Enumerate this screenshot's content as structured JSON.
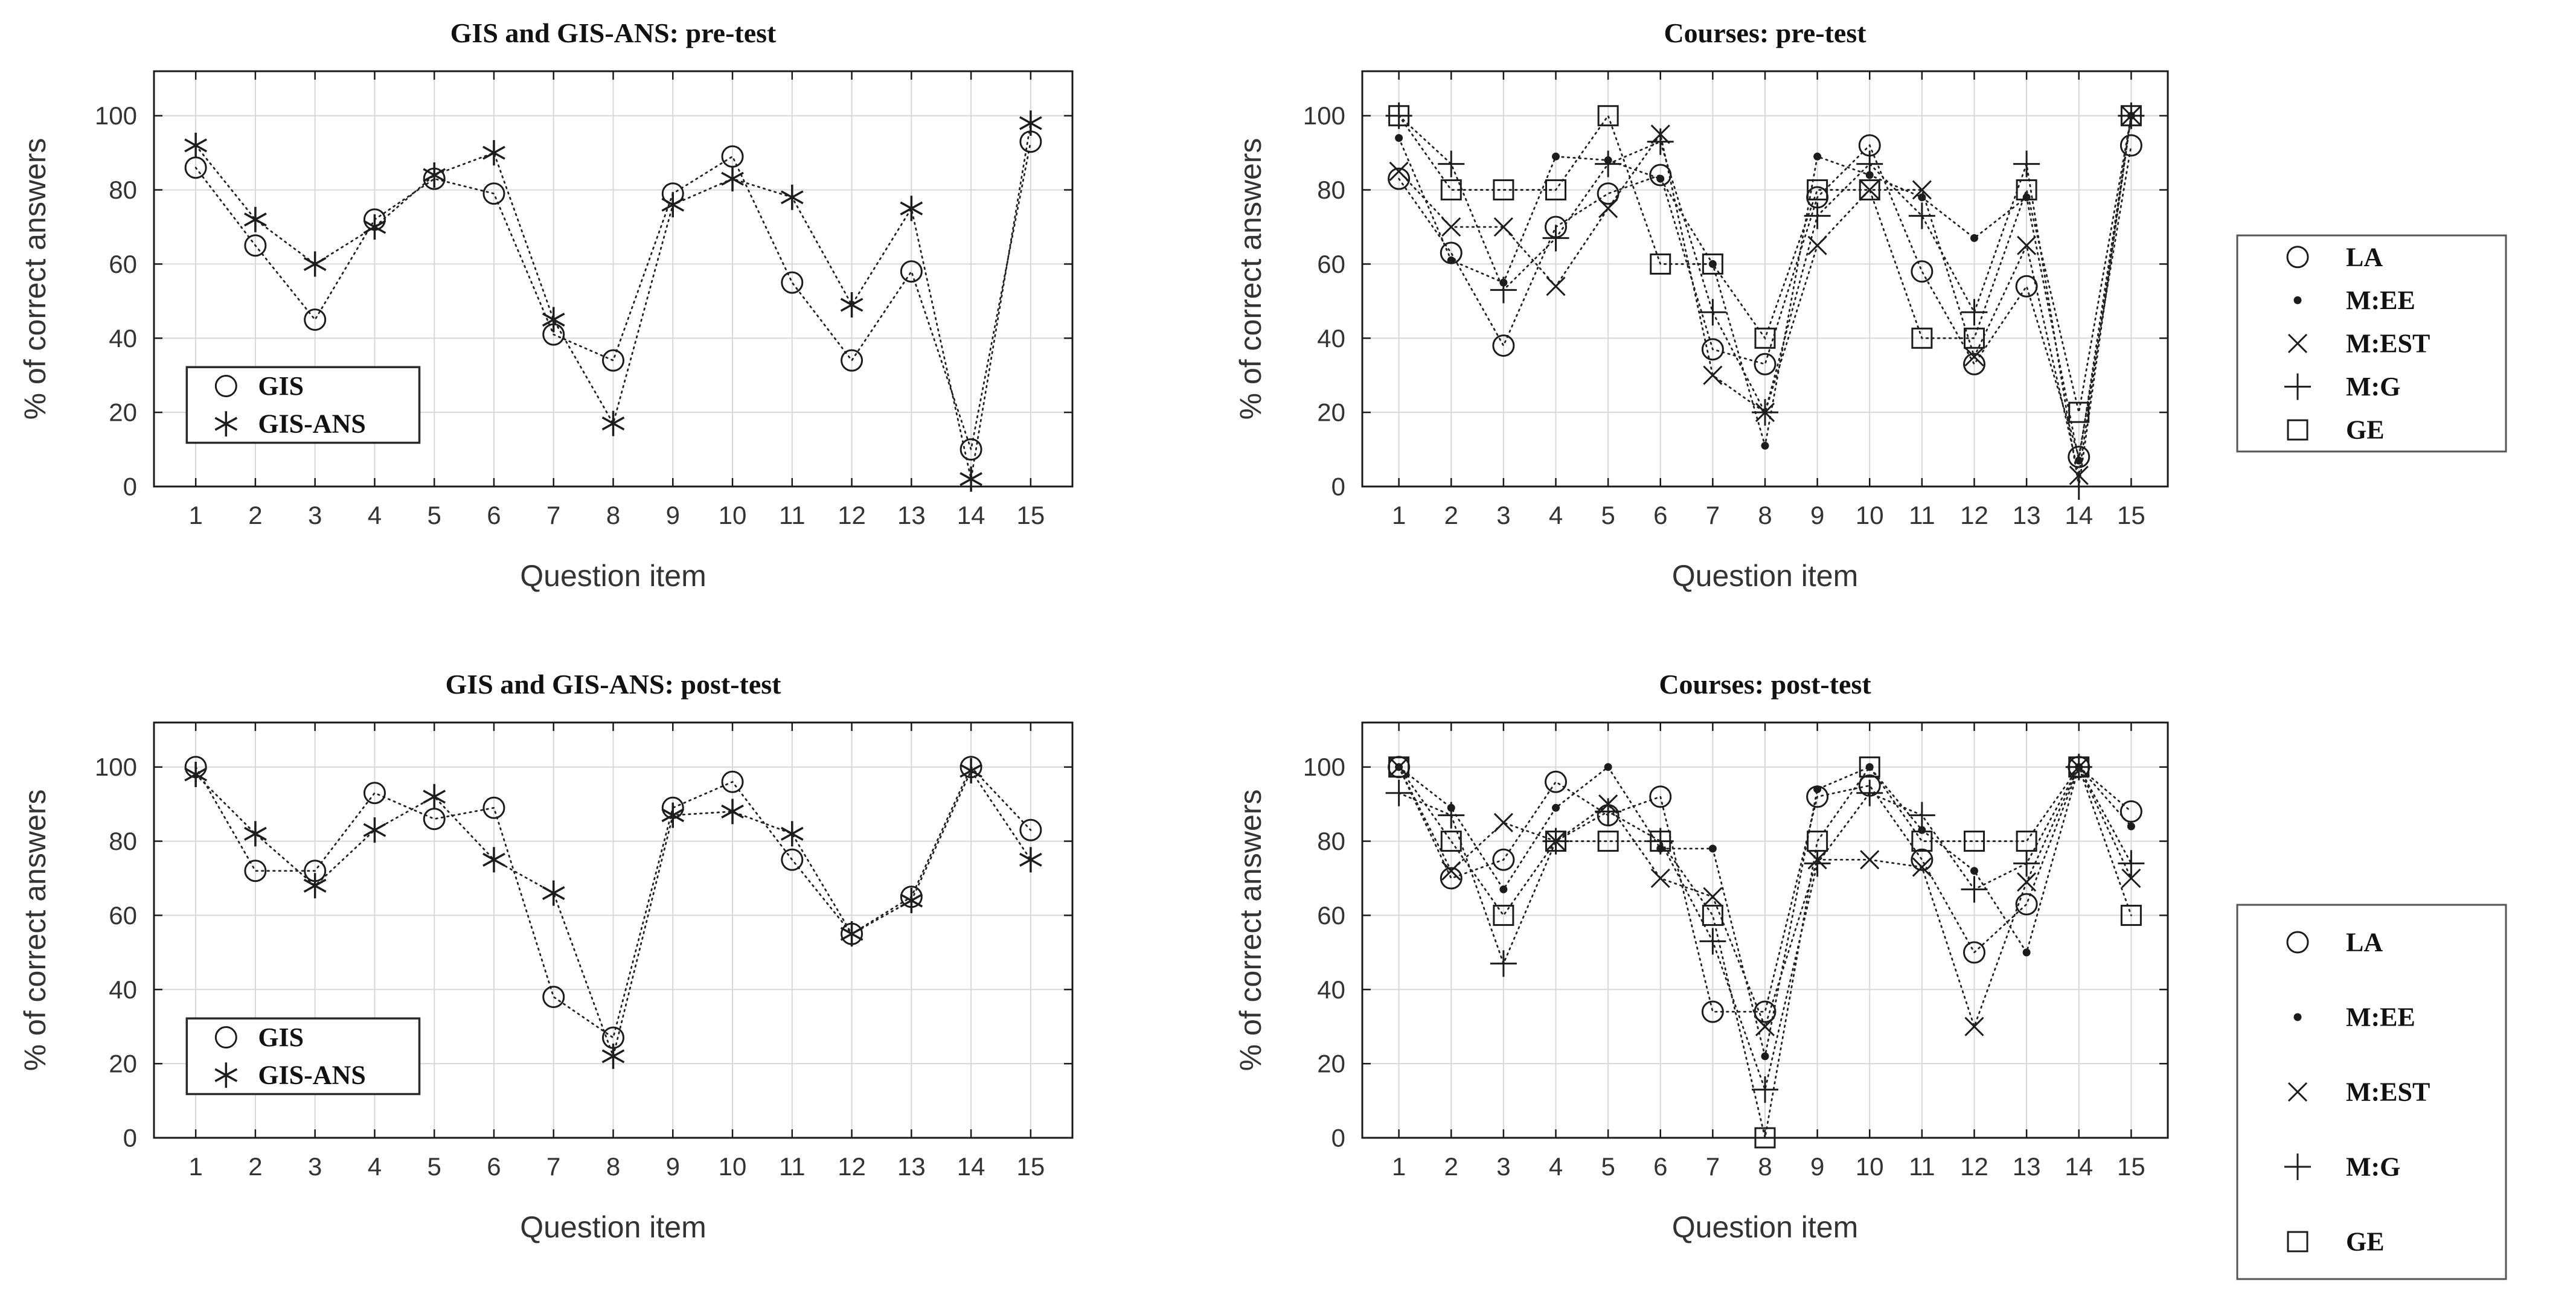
{
  "figure": {
    "background": "#ffffff",
    "colors": {
      "line": "#222222",
      "marker": "#1c1c1c",
      "grid": "#d8d8d8",
      "spine": "#1a1a1a",
      "tick_label": "#333333",
      "title_text": "#111111",
      "legend_border": "#555555"
    }
  },
  "chart_data": [
    {
      "id": "gis-pretest",
      "type": "line",
      "title": "GIS and GIS-ANS: pre-test",
      "xlabel": "Question item",
      "ylabel": "% of correct answers",
      "x": [
        1,
        2,
        3,
        4,
        5,
        6,
        7,
        8,
        9,
        10,
        11,
        12,
        13,
        14,
        15
      ],
      "xlim": [
        0.3,
        15.7
      ],
      "ylim": [
        0,
        112
      ],
      "yticks": [
        0,
        20,
        40,
        60,
        80,
        100
      ],
      "grid": true,
      "legend_position": "inside-bottom-left",
      "series": [
        {
          "name": "GIS",
          "marker": "circle",
          "values": [
            86,
            65,
            45,
            72,
            83,
            79,
            41,
            34,
            79,
            89,
            55,
            34,
            58,
            10,
            93
          ]
        },
        {
          "name": "GIS-ANS",
          "marker": "asterisk",
          "values": [
            92,
            72,
            60,
            70,
            84,
            90,
            45,
            17,
            76,
            83,
            78,
            49,
            75,
            2,
            98
          ]
        }
      ]
    },
    {
      "id": "courses-pretest",
      "type": "line",
      "title": "Courses: pre-test",
      "xlabel": "Question item",
      "ylabel": "% of correct answers",
      "x": [
        1,
        2,
        3,
        4,
        5,
        6,
        7,
        8,
        9,
        10,
        11,
        12,
        13,
        14,
        15
      ],
      "xlim": [
        0.3,
        15.7
      ],
      "ylim": [
        0,
        112
      ],
      "yticks": [
        0,
        20,
        40,
        60,
        80,
        100
      ],
      "grid": true,
      "legend_position": "outside-right",
      "series": [
        {
          "name": "LA",
          "marker": "circle",
          "values": [
            83,
            63,
            38,
            70,
            79,
            84,
            37,
            33,
            78,
            92,
            58,
            33,
            54,
            8,
            92
          ]
        },
        {
          "name": "M:EE",
          "marker": "dot",
          "values": [
            94,
            61,
            55,
            89,
            88,
            83,
            60,
            11,
            89,
            84,
            78,
            67,
            78,
            7,
            100
          ]
        },
        {
          "name": "M:EST",
          "marker": "x",
          "values": [
            85,
            70,
            70,
            54,
            75,
            95,
            30,
            20,
            65,
            80,
            80,
            35,
            65,
            3,
            100
          ]
        },
        {
          "name": "M:G",
          "marker": "plus",
          "values": [
            100,
            87,
            53,
            67,
            87,
            93,
            47,
            20,
            73,
            87,
            73,
            47,
            87,
            0,
            100
          ]
        },
        {
          "name": "GE",
          "marker": "square",
          "values": [
            100,
            80,
            80,
            80,
            100,
            60,
            60,
            40,
            80,
            80,
            40,
            40,
            80,
            20,
            100
          ]
        }
      ]
    },
    {
      "id": "gis-posttest",
      "type": "line",
      "title": "GIS and GIS-ANS: post-test",
      "xlabel": "Question item",
      "ylabel": "% of correct answers",
      "x": [
        1,
        2,
        3,
        4,
        5,
        6,
        7,
        8,
        9,
        10,
        11,
        12,
        13,
        14,
        15
      ],
      "xlim": [
        0.3,
        15.7
      ],
      "ylim": [
        0,
        112
      ],
      "yticks": [
        0,
        20,
        40,
        60,
        80,
        100
      ],
      "grid": true,
      "legend_position": "inside-bottom-left",
      "series": [
        {
          "name": "GIS",
          "marker": "circle",
          "values": [
            100,
            72,
            72,
            93,
            86,
            89,
            38,
            27,
            89,
            96,
            75,
            55,
            65,
            100,
            83
          ]
        },
        {
          "name": "GIS-ANS",
          "marker": "asterisk",
          "values": [
            98,
            82,
            68,
            83,
            92,
            75,
            66,
            22,
            87,
            88,
            82,
            55,
            64,
            99,
            75
          ]
        }
      ]
    },
    {
      "id": "courses-posttest",
      "type": "line",
      "title": "Courses: post-test",
      "xlabel": "Question item",
      "ylabel": "% of correct answers",
      "x": [
        1,
        2,
        3,
        4,
        5,
        6,
        7,
        8,
        9,
        10,
        11,
        12,
        13,
        14,
        15
      ],
      "xlim": [
        0.3,
        15.7
      ],
      "ylim": [
        0,
        112
      ],
      "yticks": [
        0,
        20,
        40,
        60,
        80,
        100
      ],
      "grid": true,
      "legend_position": "outside-right-low",
      "series": [
        {
          "name": "LA",
          "marker": "circle",
          "values": [
            100,
            70,
            75,
            96,
            87,
            92,
            34,
            34,
            92,
            95,
            75,
            50,
            63,
            100,
            88
          ]
        },
        {
          "name": "M:EE",
          "marker": "dot",
          "values": [
            100,
            89,
            67,
            89,
            100,
            78,
            78,
            22,
            94,
            100,
            83,
            72,
            50,
            100,
            84
          ]
        },
        {
          "name": "M:EST",
          "marker": "x",
          "values": [
            100,
            72,
            85,
            80,
            90,
            70,
            65,
            30,
            75,
            75,
            73,
            30,
            69,
            100,
            70
          ]
        },
        {
          "name": "M:G",
          "marker": "plus",
          "values": [
            93,
            87,
            47,
            80,
            88,
            80,
            53,
            13,
            74,
            93,
            87,
            67,
            74,
            100,
            74
          ]
        },
        {
          "name": "GE",
          "marker": "square",
          "values": [
            100,
            80,
            60,
            80,
            80,
            80,
            60,
            0,
            80,
            100,
            80,
            80,
            80,
            100,
            60
          ]
        }
      ]
    }
  ]
}
